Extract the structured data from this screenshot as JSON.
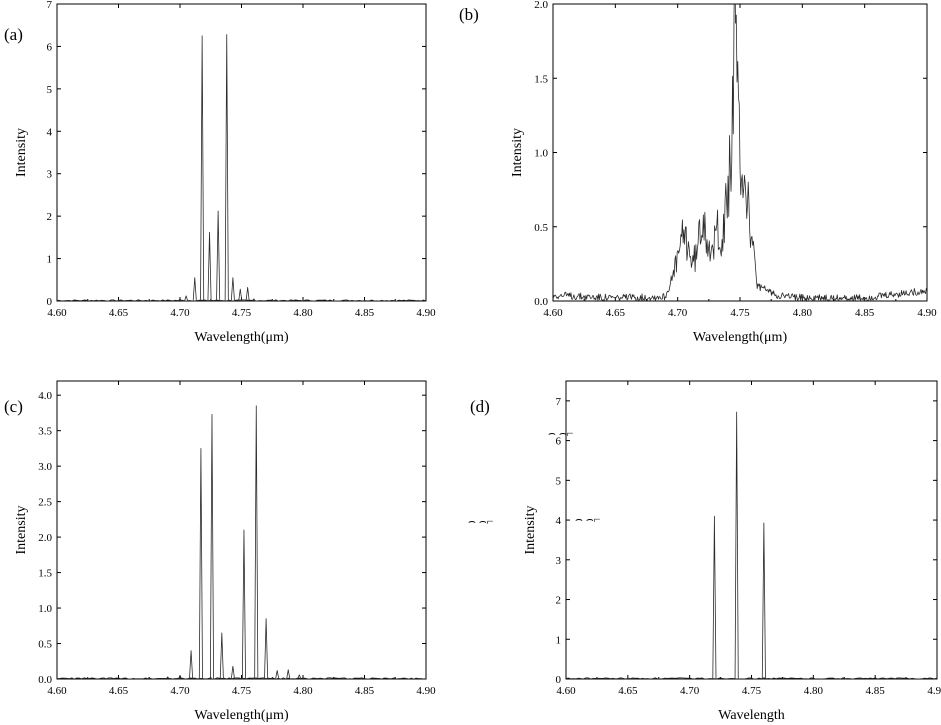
{
  "chart_data": [
    {
      "id": "a",
      "type": "line",
      "panel_label": "(a)",
      "xlabel": "Wavelength(μm)",
      "ylabel": "Intensity",
      "xlim": [
        4.6,
        4.9
      ],
      "ylim": [
        0,
        7
      ],
      "xticks": [
        "4.60",
        "4.65",
        "4.70",
        "4.75",
        "4.80",
        "4.85",
        "4.90"
      ],
      "yticks": [
        "0",
        "1",
        "2",
        "3",
        "4",
        "5",
        "6",
        "7"
      ],
      "peaks": [
        {
          "x": 4.7,
          "y": 0.05
        },
        {
          "x": 4.705,
          "y": 0.12
        },
        {
          "x": 4.712,
          "y": 0.55
        },
        {
          "x": 4.718,
          "y": 6.25
        },
        {
          "x": 4.724,
          "y": 1.62
        },
        {
          "x": 4.731,
          "y": 2.12
        },
        {
          "x": 4.738,
          "y": 6.28
        },
        {
          "x": 4.743,
          "y": 0.55
        },
        {
          "x": 4.749,
          "y": 0.28
        },
        {
          "x": 4.755,
          "y": 0.32
        },
        {
          "x": 4.76,
          "y": 0.05
        }
      ]
    },
    {
      "id": "b",
      "type": "line",
      "panel_label": "(b)",
      "xlabel": "Wavelength(μm)",
      "ylabel": "Intensity",
      "xlim": [
        4.6,
        4.9
      ],
      "ylim": [
        0,
        2.0
      ],
      "xticks": [
        "4.60",
        "4.65",
        "4.70",
        "4.75",
        "4.80",
        "4.85",
        "4.90"
      ],
      "yticks": [
        "0.0",
        "0.5",
        "1.0",
        "1.5",
        "2.0"
      ],
      "envelope": [
        {
          "x": 4.6,
          "y": 0.04
        },
        {
          "x": 4.65,
          "y": 0.02
        },
        {
          "x": 4.69,
          "y": 0.03
        },
        {
          "x": 4.696,
          "y": 0.15
        },
        {
          "x": 4.7,
          "y": 0.3
        },
        {
          "x": 4.705,
          "y": 0.45
        },
        {
          "x": 4.708,
          "y": 0.4
        },
        {
          "x": 4.712,
          "y": 0.25
        },
        {
          "x": 4.716,
          "y": 0.35
        },
        {
          "x": 4.72,
          "y": 0.62
        },
        {
          "x": 4.724,
          "y": 0.45
        },
        {
          "x": 4.728,
          "y": 0.28
        },
        {
          "x": 4.732,
          "y": 0.55
        },
        {
          "x": 4.736,
          "y": 0.4
        },
        {
          "x": 4.74,
          "y": 0.72
        },
        {
          "x": 4.743,
          "y": 1.0
        },
        {
          "x": 4.746,
          "y": 1.82
        },
        {
          "x": 4.749,
          "y": 1.1
        },
        {
          "x": 4.752,
          "y": 0.9
        },
        {
          "x": 4.756,
          "y": 0.7
        },
        {
          "x": 4.76,
          "y": 0.35
        },
        {
          "x": 4.764,
          "y": 0.1
        },
        {
          "x": 4.78,
          "y": 0.04
        },
        {
          "x": 4.8,
          "y": 0.02
        },
        {
          "x": 4.85,
          "y": 0.02
        },
        {
          "x": 4.88,
          "y": 0.05
        },
        {
          "x": 4.9,
          "y": 0.07
        }
      ]
    },
    {
      "id": "c",
      "type": "line",
      "panel_label": "(c)",
      "xlabel": "Wavelength(μm)",
      "ylabel": "Intensity",
      "xlim": [
        4.6,
        4.9
      ],
      "ylim": [
        0,
        4.2
      ],
      "xticks": [
        "4.60",
        "4.65",
        "4.70",
        "4.75",
        "4.80",
        "4.85",
        "4.90"
      ],
      "yticks": [
        "0.0",
        "0.5",
        "1.0",
        "1.5",
        "2.0",
        "2.5",
        "3.0",
        "3.5",
        "4.0"
      ],
      "peaks": [
        {
          "x": 4.675,
          "y": 0.02
        },
        {
          "x": 4.69,
          "y": 0.03
        },
        {
          "x": 4.7,
          "y": 0.05
        },
        {
          "x": 4.709,
          "y": 0.4
        },
        {
          "x": 4.717,
          "y": 3.25
        },
        {
          "x": 4.726,
          "y": 3.73
        },
        {
          "x": 4.734,
          "y": 0.65
        },
        {
          "x": 4.743,
          "y": 0.18
        },
        {
          "x": 4.752,
          "y": 2.1
        },
        {
          "x": 4.762,
          "y": 3.85
        },
        {
          "x": 4.77,
          "y": 0.85
        },
        {
          "x": 4.779,
          "y": 0.12
        },
        {
          "x": 4.788,
          "y": 0.13
        },
        {
          "x": 4.797,
          "y": 0.06
        }
      ]
    },
    {
      "id": "d",
      "type": "line",
      "panel_label": "(d)",
      "xlabel": "Wavelength",
      "ylabel": "Intensity",
      "xlim": [
        4.6,
        4.9
      ],
      "ylim": [
        0,
        7.5
      ],
      "xticks": [
        "4.60",
        "4.65",
        "4.70",
        "4.75",
        "4.80",
        "4.85",
        "4.90"
      ],
      "yticks": [
        "0",
        "1",
        "2",
        "3",
        "4",
        "5",
        "6",
        "7"
      ],
      "peaks": [
        {
          "x": 4.72,
          "y": 4.1
        },
        {
          "x": 4.738,
          "y": 6.72
        },
        {
          "x": 4.76,
          "y": 3.93
        }
      ]
    }
  ]
}
